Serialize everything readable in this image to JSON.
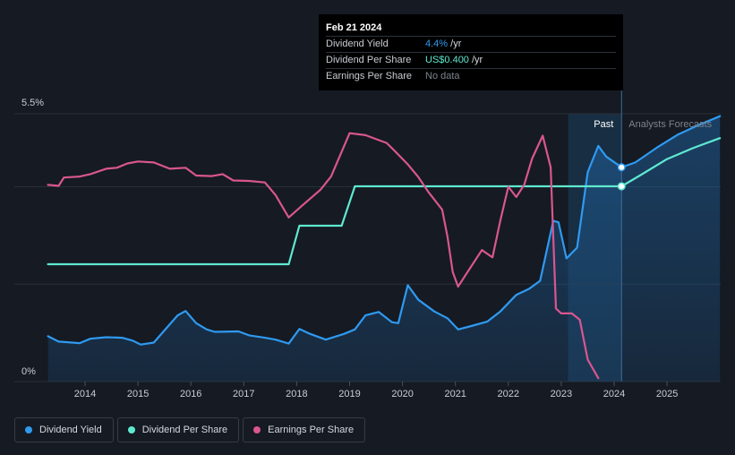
{
  "tooltip": {
    "date": "Feb 21 2024",
    "rows": [
      {
        "label": "Dividend Yield",
        "value": "4.4%",
        "unit": " /yr"
      },
      {
        "label": "Dividend Per Share",
        "value": "US$0.400",
        "unit": " /yr"
      },
      {
        "label": "Earnings Per Share",
        "value": "No data",
        "unit": ""
      }
    ]
  },
  "region_labels": {
    "past": "Past",
    "forecast": "Analysts Forecasts"
  },
  "legend": [
    {
      "label": "Dividend Yield",
      "color": "#2f9af0"
    },
    {
      "label": "Dividend Per Share",
      "color": "#5fe9d0"
    },
    {
      "label": "Earnings Per Share",
      "color": "#d9568e"
    }
  ],
  "chart_data": {
    "type": "line",
    "x_range": [
      2013.2,
      2026.0
    ],
    "ylim": [
      0,
      5.5
    ],
    "y_tick_labels": [
      "0%",
      "5.5%"
    ],
    "x_ticks": [
      2014,
      2015,
      2016,
      2017,
      2018,
      2019,
      2020,
      2021,
      2022,
      2023,
      2024,
      2025
    ],
    "forecast_start": 2024.14,
    "past_shade_start": 2023.13,
    "series": [
      {
        "name": "Dividend Yield",
        "color": "#2f9af0",
        "area": true,
        "points": [
          [
            2013.3,
            0.93
          ],
          [
            2013.5,
            0.82
          ],
          [
            2013.9,
            0.79
          ],
          [
            2014.1,
            0.88
          ],
          [
            2014.4,
            0.91
          ],
          [
            2014.7,
            0.9
          ],
          [
            2014.9,
            0.84
          ],
          [
            2015.05,
            0.76
          ],
          [
            2015.3,
            0.8
          ],
          [
            2015.5,
            1.05
          ],
          [
            2015.75,
            1.36
          ],
          [
            2015.9,
            1.45
          ],
          [
            2016.1,
            1.2
          ],
          [
            2016.3,
            1.07
          ],
          [
            2016.45,
            1.02
          ],
          [
            2016.9,
            1.03
          ],
          [
            2017.1,
            0.95
          ],
          [
            2017.4,
            0.9
          ],
          [
            2017.6,
            0.86
          ],
          [
            2017.85,
            0.78
          ],
          [
            2018.05,
            1.08
          ],
          [
            2018.25,
            0.98
          ],
          [
            2018.55,
            0.86
          ],
          [
            2018.9,
            0.98
          ],
          [
            2019.1,
            1.07
          ],
          [
            2019.3,
            1.36
          ],
          [
            2019.55,
            1.43
          ],
          [
            2019.8,
            1.22
          ],
          [
            2019.92,
            1.2
          ],
          [
            2020.1,
            1.98
          ],
          [
            2020.3,
            1.68
          ],
          [
            2020.6,
            1.44
          ],
          [
            2020.85,
            1.3
          ],
          [
            2021.05,
            1.07
          ],
          [
            2021.3,
            1.14
          ],
          [
            2021.6,
            1.23
          ],
          [
            2021.85,
            1.44
          ],
          [
            2022.15,
            1.78
          ],
          [
            2022.4,
            1.91
          ],
          [
            2022.6,
            2.07
          ],
          [
            2022.85,
            3.3
          ],
          [
            2022.95,
            3.27
          ],
          [
            2023.1,
            2.53
          ],
          [
            2023.3,
            2.75
          ],
          [
            2023.5,
            4.3
          ],
          [
            2023.7,
            4.84
          ],
          [
            2023.85,
            4.62
          ],
          [
            2024.14,
            4.4
          ]
        ]
      },
      {
        "name": "Dividend Yield forecast",
        "color": "#2f9af0",
        "area": true,
        "points": [
          [
            2024.14,
            4.4
          ],
          [
            2024.4,
            4.5
          ],
          [
            2024.8,
            4.8
          ],
          [
            2025.2,
            5.07
          ],
          [
            2025.6,
            5.27
          ],
          [
            2026.0,
            5.45
          ]
        ]
      },
      {
        "name": "Dividend Per Share",
        "color": "#5fe9d0",
        "area": false,
        "points": [
          [
            2013.3,
            2.41
          ],
          [
            2017.85,
            2.41
          ],
          [
            2018.05,
            3.2
          ],
          [
            2018.85,
            3.2
          ],
          [
            2019.1,
            4.01
          ],
          [
            2024.14,
            4.01
          ]
        ]
      },
      {
        "name": "Dividend Per Share forecast",
        "color": "#5fe9d0",
        "area": false,
        "points": [
          [
            2024.14,
            4.01
          ],
          [
            2024.5,
            4.24
          ],
          [
            2025.0,
            4.57
          ],
          [
            2025.5,
            4.8
          ],
          [
            2026.0,
            5.0
          ]
        ]
      },
      {
        "name": "Earnings Per Share",
        "color": "#d9568e",
        "area": false,
        "points": [
          [
            2013.3,
            4.04
          ],
          [
            2013.5,
            4.02
          ],
          [
            2013.6,
            4.19
          ],
          [
            2013.9,
            4.21
          ],
          [
            2014.1,
            4.26
          ],
          [
            2014.4,
            4.37
          ],
          [
            2014.6,
            4.39
          ],
          [
            2014.8,
            4.48
          ],
          [
            2015.0,
            4.52
          ],
          [
            2015.3,
            4.5
          ],
          [
            2015.6,
            4.37
          ],
          [
            2015.9,
            4.39
          ],
          [
            2016.1,
            4.23
          ],
          [
            2016.4,
            4.22
          ],
          [
            2016.6,
            4.26
          ],
          [
            2016.8,
            4.13
          ],
          [
            2017.1,
            4.12
          ],
          [
            2017.4,
            4.09
          ],
          [
            2017.6,
            3.83
          ],
          [
            2017.85,
            3.37
          ],
          [
            2018.1,
            3.61
          ],
          [
            2018.45,
            3.94
          ],
          [
            2018.65,
            4.21
          ],
          [
            2019.0,
            5.1
          ],
          [
            2019.3,
            5.06
          ],
          [
            2019.55,
            4.96
          ],
          [
            2019.7,
            4.9
          ],
          [
            2019.85,
            4.74
          ],
          [
            2020.1,
            4.46
          ],
          [
            2020.3,
            4.2
          ],
          [
            2020.5,
            3.88
          ],
          [
            2020.75,
            3.53
          ],
          [
            2020.85,
            2.98
          ],
          [
            2020.95,
            2.25
          ],
          [
            2021.05,
            1.95
          ],
          [
            2021.2,
            2.2
          ],
          [
            2021.5,
            2.7
          ],
          [
            2021.7,
            2.55
          ],
          [
            2021.85,
            3.31
          ],
          [
            2022.0,
            4.0
          ],
          [
            2022.15,
            3.79
          ],
          [
            2022.3,
            4.04
          ],
          [
            2022.45,
            4.58
          ],
          [
            2022.65,
            5.05
          ],
          [
            2022.8,
            4.4
          ],
          [
            2022.9,
            1.5
          ],
          [
            2023.0,
            1.4
          ],
          [
            2023.2,
            1.4
          ],
          [
            2023.35,
            1.27
          ],
          [
            2023.5,
            0.45
          ],
          [
            2023.7,
            0.07
          ]
        ]
      }
    ],
    "markers": [
      {
        "x": 2024.14,
        "y": 4.4,
        "color": "#2f9af0"
      },
      {
        "x": 2024.14,
        "y": 4.01,
        "color": "#5fe9d0"
      }
    ]
  }
}
